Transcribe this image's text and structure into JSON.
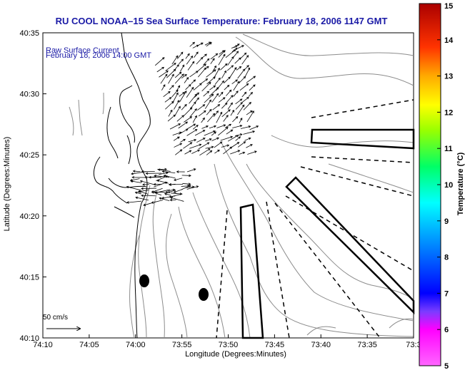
{
  "title": "RU COOL  NOAA–15  Sea Surface Temperature:  February 18, 2006 1147 GMT",
  "legend": {
    "line1": "Raw Surface Current",
    "line2": "February 18, 2006 14:00 GMT"
  },
  "scale": {
    "label": "50 cm/s"
  },
  "axes": {
    "ylabel": "Latitude (Degrees:Minutes)",
    "xlabel": "Longitude (Degrees:Minutes)",
    "yticks": [
      "40:35",
      "40:30",
      "40:25",
      "40:20",
      "40:15",
      "40:10"
    ],
    "xticks": [
      "74:10",
      "74:05",
      "74:00",
      "73:55",
      "73:50",
      "73:45",
      "73:40",
      "73:35",
      "73:3"
    ]
  },
  "colorbar": {
    "label": "Temperature (°C)",
    "ticks": [
      "15",
      "14",
      "13",
      "12",
      "11",
      "10",
      "9",
      "8",
      "7",
      "6",
      "5"
    ],
    "min": 5,
    "max": 15
  },
  "colors": {
    "title": "#1a1aa6",
    "coast": "#000000",
    "bathymetry": "#888888"
  }
}
